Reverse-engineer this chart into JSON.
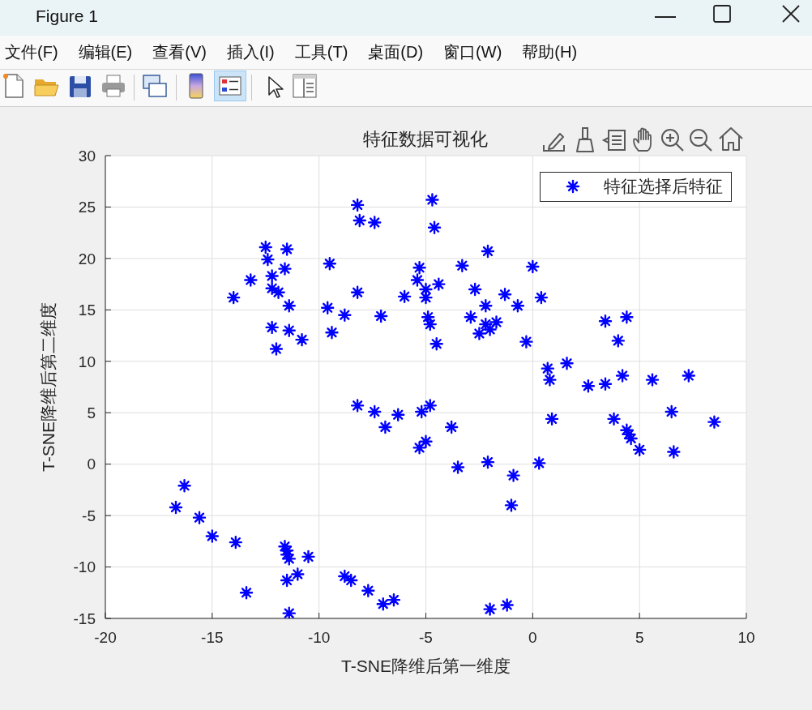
{
  "chart_data": {
    "type": "scatter",
    "title": "特征数据可视化",
    "xlabel": "T-SNE降维后第一维度",
    "ylabel": "T-SNE降维后第二维度",
    "annotations": [
      "Figure 1",
      "文件(F)",
      "编辑(E)",
      "查看(V)",
      "插入(I)",
      "工具(T)",
      "桌面(D)",
      "窗口(W)",
      "帮助(H)"
    ],
    "x": [
      -8.2,
      -8.1,
      -7.4,
      -12.5,
      -11.5,
      -12.4,
      -11.6,
      -9.5,
      -13.2,
      -12.2,
      -12.2,
      -11.9,
      -14.0,
      -11.4,
      -8.2,
      -9.6,
      -8.8,
      -7.1,
      -12.2,
      -11.4,
      -10.8,
      -9.4,
      -12.0,
      -5.3,
      -5.4,
      -6.0,
      -5.0,
      -5.0,
      -4.9,
      -4.8,
      -4.7,
      -4.6,
      -2.1,
      -3.3,
      0.0,
      -4.4,
      -2.7,
      -1.3,
      0.4,
      -2.2,
      -0.7,
      -2.9,
      -2.2,
      -1.7,
      -2.0,
      -2.5,
      -0.3,
      -4.5,
      3.4,
      4.4,
      4.0,
      1.6,
      0.7,
      0.8,
      2.6,
      3.4,
      4.2,
      5.6,
      7.3,
      -8.2,
      -7.4,
      -6.9,
      -6.3,
      -5.2,
      -4.8,
      -5.3,
      -5.0,
      -16.3,
      -16.7,
      -15.6,
      -15.0,
      -13.9,
      -11.6,
      -11.5,
      -11.5,
      -11.4,
      -10.5,
      -11.0,
      -11.5,
      -13.4,
      -11.4,
      -8.8,
      -8.5,
      -7.7,
      -7.0,
      -6.5,
      -3.8,
      -3.5,
      -2.1,
      -0.9,
      -1.0,
      0.3,
      0.9,
      3.8,
      4.4,
      4.5,
      4.6,
      5.0,
      6.5,
      6.6,
      8.5,
      -2.0,
      -1.2
    ],
    "series": [
      {
        "name": "特征选择后特征",
        "color": "#0000ff",
        "values": [
          25.2,
          23.7,
          23.5,
          21.1,
          20.9,
          19.9,
          19.0,
          19.5,
          17.9,
          18.3,
          17.1,
          16.7,
          16.2,
          15.4,
          16.7,
          15.2,
          14.5,
          14.4,
          13.3,
          13.0,
          12.1,
          12.8,
          11.2,
          19.1,
          17.9,
          16.3,
          17.0,
          16.2,
          14.3,
          13.6,
          25.7,
          23.0,
          20.7,
          19.3,
          19.2,
          17.5,
          17.0,
          16.5,
          16.2,
          15.4,
          15.4,
          14.3,
          13.6,
          13.8,
          13.1,
          12.7,
          11.9,
          11.7,
          13.9,
          14.3,
          12.0,
          9.8,
          9.3,
          8.2,
          7.6,
          7.8,
          8.6,
          8.2,
          8.6,
          5.7,
          5.1,
          3.6,
          4.8,
          5.1,
          5.7,
          1.6,
          2.2,
          -2.1,
          -4.2,
          -5.2,
          -7.0,
          -7.6,
          -8.0,
          -8.4,
          -8.8,
          -9.2,
          -9.0,
          -10.7,
          -11.3,
          -12.5,
          -14.5,
          -10.9,
          -11.3,
          -12.3,
          -13.6,
          -13.2,
          3.6,
          -0.3,
          0.2,
          -1.1,
          -4.0,
          0.1,
          4.4,
          4.4,
          3.3,
          2.9,
          2.5,
          1.4,
          5.1,
          1.2,
          4.1,
          -14.1,
          -13.7
        ]
      }
    ],
    "xlim": [
      -20,
      10
    ],
    "xticks": [
      -20,
      -15,
      -10,
      -5,
      0,
      5,
      10
    ],
    "ylim": [
      -15,
      30
    ],
    "yticks": [
      -15,
      -10,
      -5,
      0,
      5,
      10,
      15,
      20,
      25,
      30
    ],
    "grid": true,
    "legend": "top right",
    "marker": "cross"
  }
}
